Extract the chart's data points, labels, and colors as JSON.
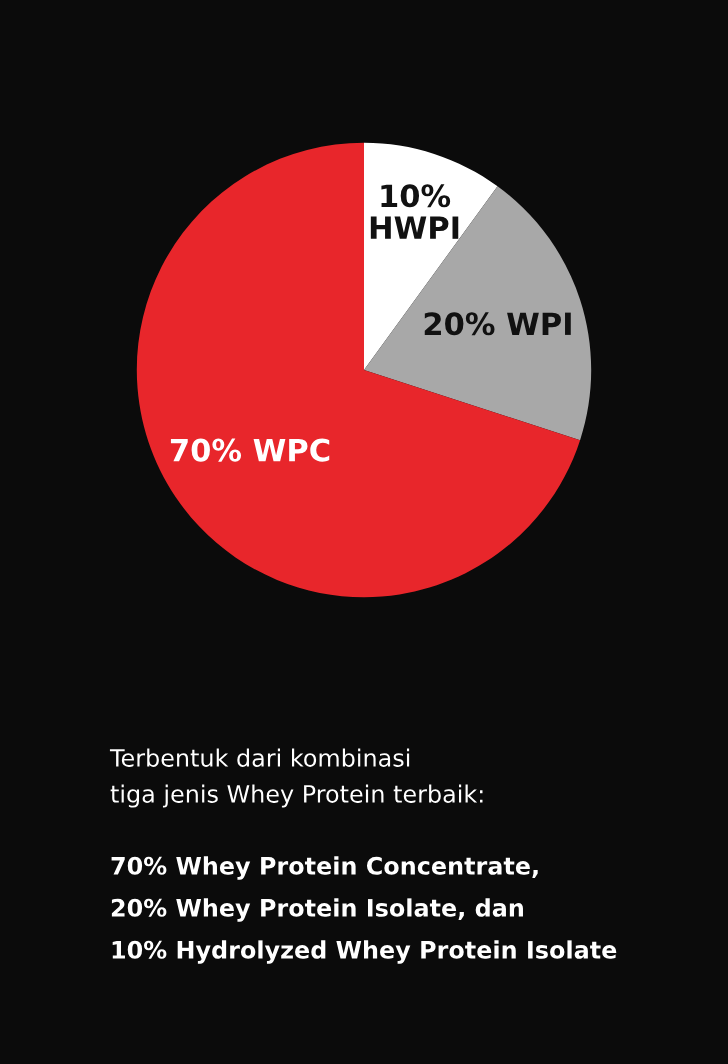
{
  "chart_data": {
    "type": "pie",
    "categories": [
      "HWPI",
      "WPI",
      "WPC"
    ],
    "values": [
      10,
      20,
      70
    ],
    "value_labels": [
      "10%",
      "20%",
      "70%"
    ],
    "colors": [
      "#ffffff",
      "#a8a8a8",
      "#e8262b"
    ],
    "annotations": [
      "Terbentuk dari kombinasi",
      "tiga jenis Whey Protein terbaik:",
      "70% Whey Protein Concentrate,",
      "20% Whey Protein Isolate, dan",
      "10% Hydrolyzed Whey Protein Isolate"
    ]
  }
}
